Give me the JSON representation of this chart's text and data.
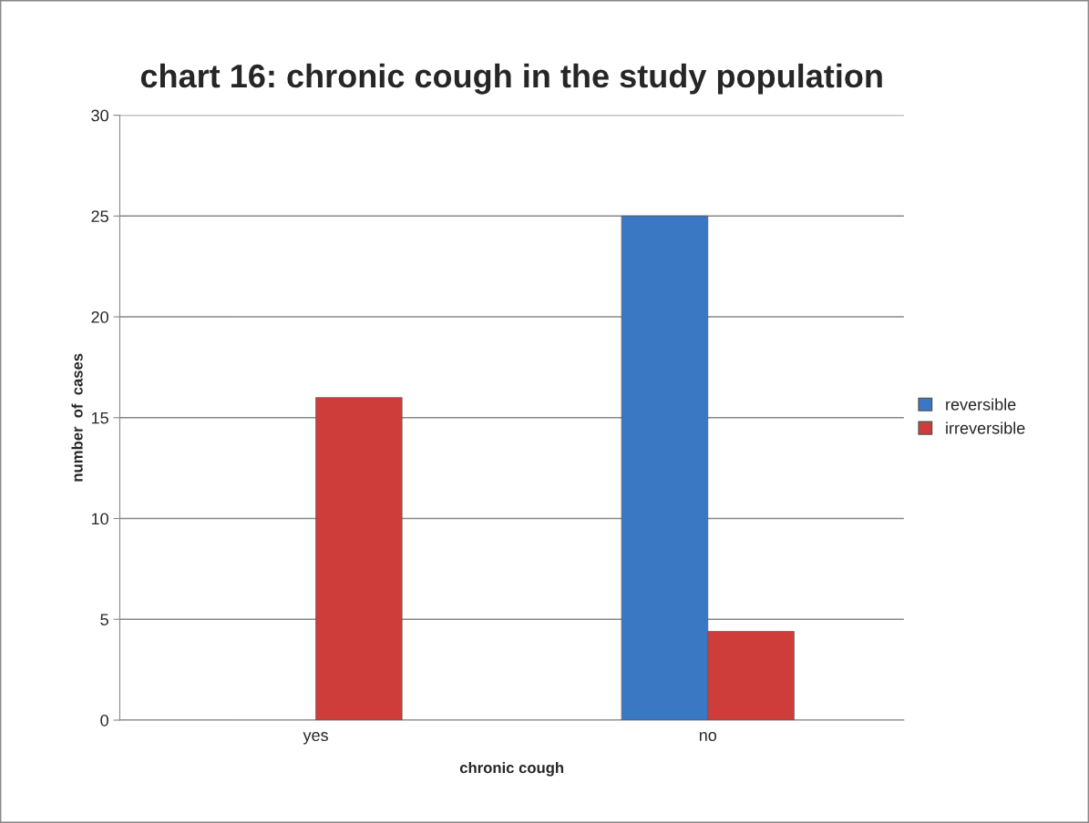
{
  "chart_data": {
    "type": "bar",
    "title": "chart 16: chronic cough in the study population",
    "xlabel": "chronic cough",
    "ylabel": "number  of  cases",
    "categories": [
      "yes",
      "no"
    ],
    "series": [
      {
        "name": "reversible",
        "color": "#3b78c4",
        "values": [
          null,
          25
        ]
      },
      {
        "name": "irreversible",
        "color": "#cf3d3a",
        "values": [
          16,
          4.4
        ]
      }
    ],
    "ylim": [
      0,
      30
    ],
    "yticks": [
      0,
      5,
      10,
      15,
      20,
      25,
      30
    ],
    "grid": "y",
    "legend": "right"
  }
}
